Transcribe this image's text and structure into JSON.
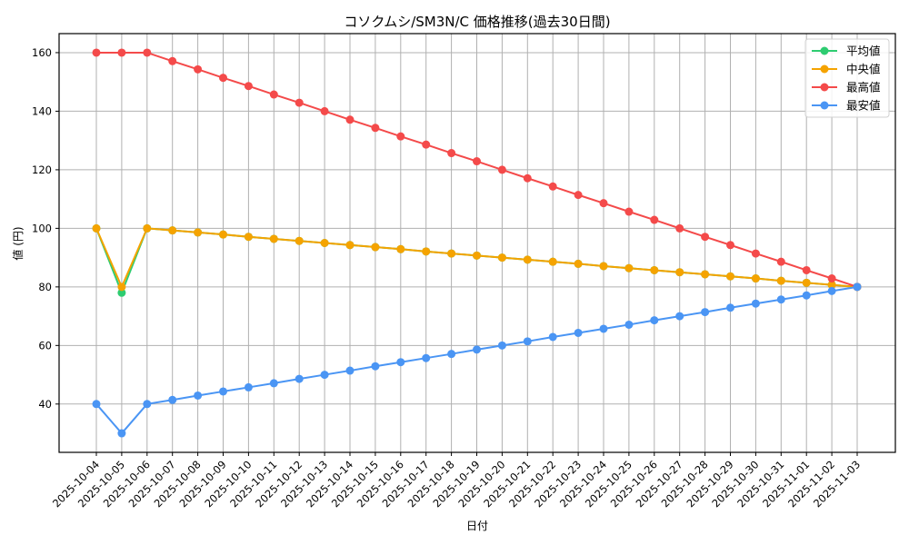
{
  "chart_data": {
    "type": "line",
    "title": "コソクムシ/SM3N/C 価格推移(過去30日間)",
    "xlabel": "日付",
    "ylabel": "値 (円)",
    "ylim": [
      23.5,
      166.5
    ],
    "yticks": [
      40,
      60,
      80,
      100,
      120,
      140,
      160
    ],
    "grid": true,
    "legend_position": "upper right",
    "x": [
      "2025-10-04",
      "2025-10-05",
      "2025-10-06",
      "2025-10-07",
      "2025-10-08",
      "2025-10-09",
      "2025-10-10",
      "2025-10-11",
      "2025-10-12",
      "2025-10-13",
      "2025-10-14",
      "2025-10-15",
      "2025-10-16",
      "2025-10-17",
      "2025-10-18",
      "2025-10-19",
      "2025-10-20",
      "2025-10-21",
      "2025-10-22",
      "2025-10-23",
      "2025-10-24",
      "2025-10-25",
      "2025-10-26",
      "2025-10-27",
      "2025-10-28",
      "2025-10-29",
      "2025-10-30",
      "2025-10-31",
      "2025-11-01",
      "2025-11-02",
      "2025-11-03"
    ],
    "series": [
      {
        "name": "平均値",
        "color": "#2ecc71",
        "values": [
          100,
          78,
          100,
          99.3,
          98.6,
          97.9,
          97.1,
          96.4,
          95.7,
          95.0,
          94.3,
          93.6,
          92.9,
          92.1,
          91.4,
          90.7,
          90.0,
          89.3,
          88.6,
          87.9,
          87.1,
          86.4,
          85.7,
          85.0,
          84.3,
          83.6,
          82.9,
          82.1,
          81.4,
          80.7,
          80.0
        ]
      },
      {
        "name": "中央値",
        "color": "#f5a300",
        "values": [
          100,
          80,
          100,
          99.3,
          98.6,
          97.9,
          97.1,
          96.4,
          95.7,
          95.0,
          94.3,
          93.6,
          92.9,
          92.1,
          91.4,
          90.7,
          90.0,
          89.3,
          88.6,
          87.9,
          87.1,
          86.4,
          85.7,
          85.0,
          84.3,
          83.6,
          82.9,
          82.1,
          81.4,
          80.7,
          80.0
        ]
      },
      {
        "name": "最高値",
        "color": "#f44a4a",
        "values": [
          160,
          160,
          160,
          157.1,
          154.3,
          151.4,
          148.6,
          145.7,
          142.9,
          140.0,
          137.1,
          134.3,
          131.4,
          128.6,
          125.7,
          122.9,
          120.0,
          117.1,
          114.3,
          111.4,
          108.6,
          105.7,
          102.9,
          100.0,
          97.1,
          94.3,
          91.4,
          88.6,
          85.7,
          82.9,
          80.0
        ]
      },
      {
        "name": "最安値",
        "color": "#4a95f4",
        "values": [
          40,
          30,
          40,
          41.4,
          42.9,
          44.3,
          45.7,
          47.1,
          48.6,
          50.0,
          51.4,
          52.9,
          54.3,
          55.7,
          57.1,
          58.6,
          60.0,
          61.4,
          62.9,
          64.3,
          65.7,
          67.1,
          68.6,
          70.0,
          71.4,
          72.9,
          74.3,
          75.7,
          77.1,
          78.6,
          80.0
        ]
      }
    ]
  },
  "legend": {
    "items": [
      {
        "label": "平均値",
        "color": "#2ecc71"
      },
      {
        "label": "中央値",
        "color": "#f5a300"
      },
      {
        "label": "最高値",
        "color": "#f44a4a"
      },
      {
        "label": "最安値",
        "color": "#4a95f4"
      }
    ]
  }
}
